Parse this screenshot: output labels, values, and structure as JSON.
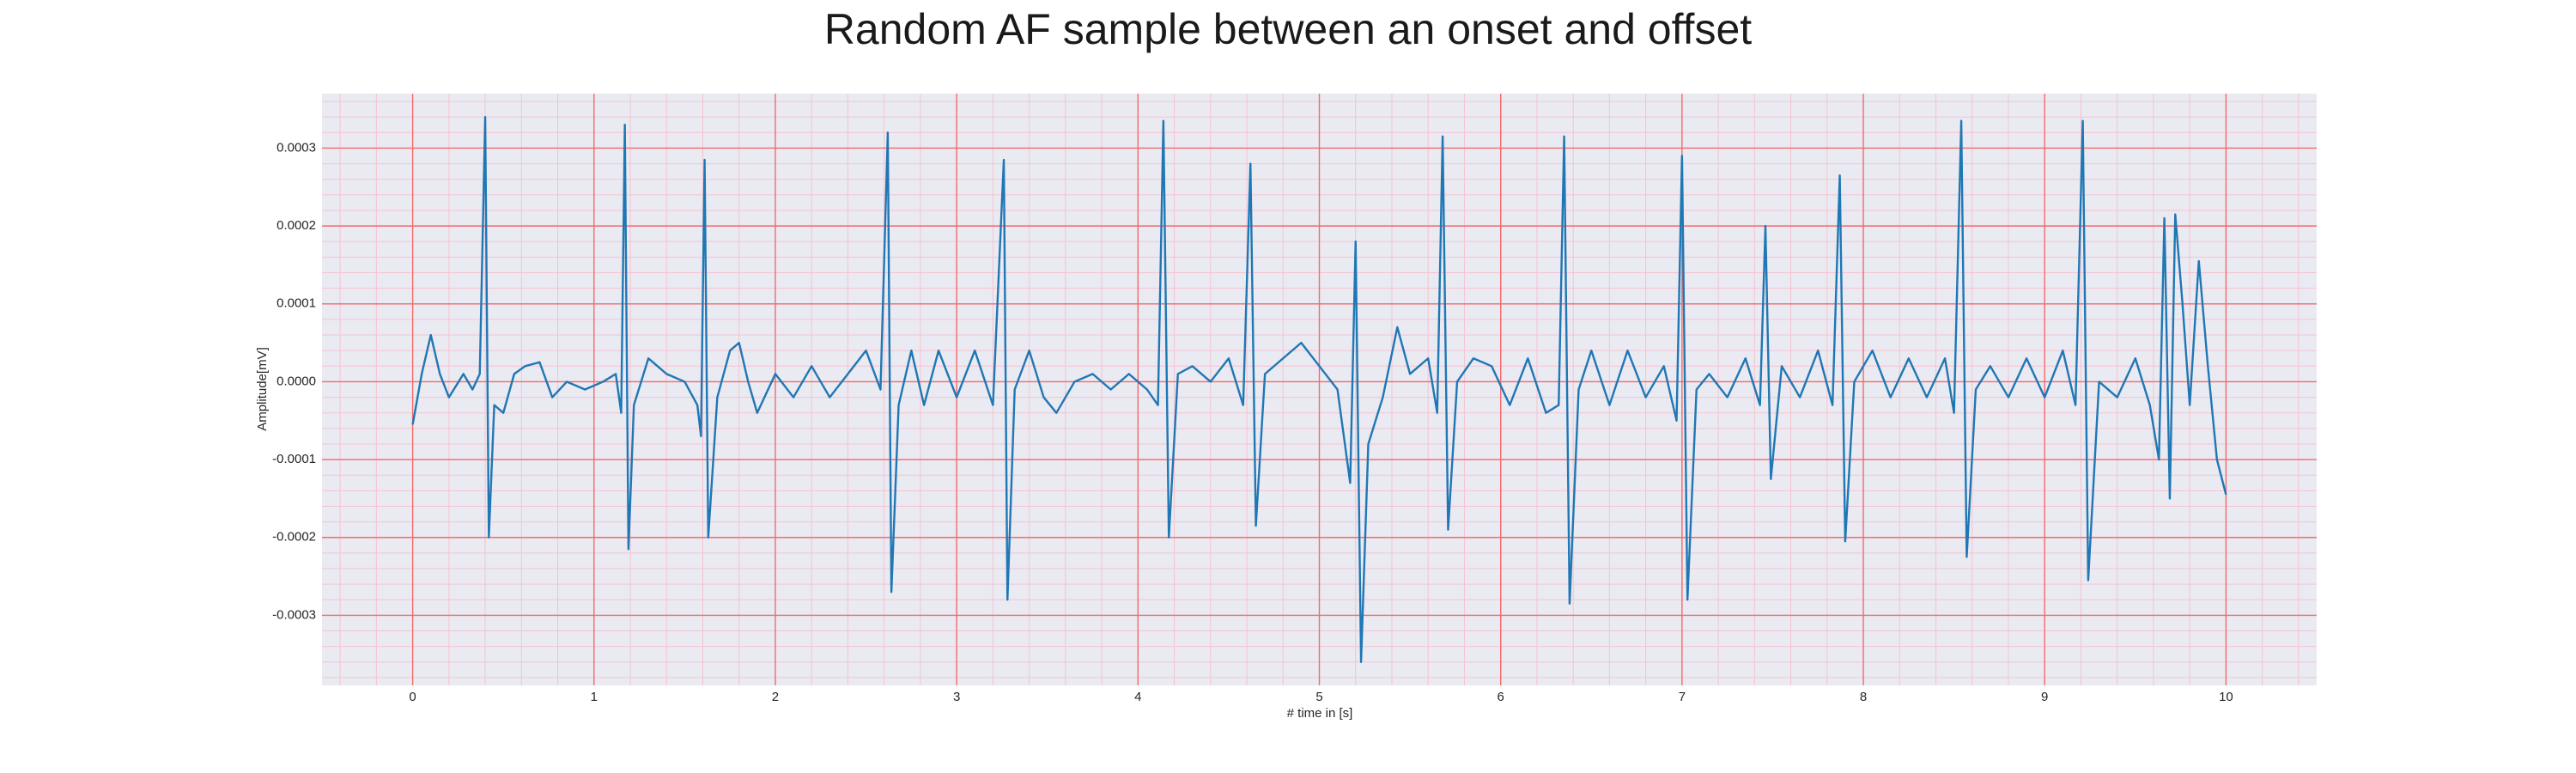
{
  "chart_data": {
    "type": "line",
    "title": "Random AF sample between an onset and offset",
    "xlabel": "# time in [s]",
    "ylabel": "Amplitude[mV]",
    "color": "#1f77b4",
    "plot_background": "#eaeaf2",
    "grid": true,
    "grid_color": "#f26b6b",
    "minor_grid": true,
    "minor_grid_color": "#f5c3cf",
    "xlim": [
      -0.5,
      10.5
    ],
    "xticks": [
      0,
      1,
      2,
      3,
      4,
      5,
      6,
      7,
      8,
      9,
      10
    ],
    "ylim": [
      -0.00039,
      0.00037
    ],
    "yticks": [
      {
        "value": -0.0003,
        "label": "-0.0003"
      },
      {
        "value": -0.0002,
        "label": "-0.0002"
      },
      {
        "value": -0.0001,
        "label": "-0.0001"
      },
      {
        "value": 0,
        "label": "0.0000"
      },
      {
        "value": 0.0001,
        "label": "0.0001"
      },
      {
        "value": 0.0002,
        "label": "0.0002"
      },
      {
        "value": 0.0003,
        "label": "0.0003"
      }
    ],
    "x": [
      0,
      0.05,
      0.1,
      0.15,
      0.2,
      0.28,
      0.33,
      0.37,
      0.4,
      0.42,
      0.45,
      0.5,
      0.56,
      0.62,
      0.7,
      0.77,
      0.85,
      0.95,
      1.05,
      1.12,
      1.15,
      1.17,
      1.19,
      1.22,
      1.3,
      1.4,
      1.5,
      1.57,
      1.59,
      1.61,
      1.63,
      1.68,
      1.75,
      1.8,
      1.85,
      1.9,
      2.0,
      2.1,
      2.2,
      2.3,
      2.4,
      2.5,
      2.58,
      2.62,
      2.64,
      2.68,
      2.75,
      2.82,
      2.9,
      3.0,
      3.1,
      3.2,
      3.26,
      3.28,
      3.32,
      3.4,
      3.48,
      3.55,
      3.65,
      3.75,
      3.85,
      3.95,
      4.05,
      4.11,
      4.14,
      4.17,
      4.22,
      4.3,
      4.4,
      4.5,
      4.58,
      4.62,
      4.65,
      4.7,
      4.8,
      4.9,
      5.0,
      5.1,
      5.17,
      5.2,
      5.23,
      5.27,
      5.35,
      5.43,
      5.5,
      5.6,
      5.65,
      5.68,
      5.71,
      5.76,
      5.85,
      5.95,
      6.05,
      6.15,
      6.25,
      6.32,
      6.35,
      6.38,
      6.43,
      6.5,
      6.6,
      6.7,
      6.8,
      6.9,
      6.97,
      7.0,
      7.03,
      7.08,
      7.15,
      7.25,
      7.35,
      7.43,
      7.46,
      7.49,
      7.55,
      7.65,
      7.75,
      7.83,
      7.87,
      7.9,
      7.95,
      8.05,
      8.15,
      8.25,
      8.35,
      8.45,
      8.5,
      8.54,
      8.57,
      8.62,
      8.7,
      8.8,
      8.9,
      9.0,
      9.1,
      9.17,
      9.21,
      9.24,
      9.3,
      9.4,
      9.5,
      9.58,
      9.63,
      9.66,
      9.69,
      9.72,
      9.76,
      9.8,
      9.85,
      9.9,
      9.95,
      10.0
    ],
    "values": [
      -5.5e-05,
      1e-05,
      6e-05,
      1e-05,
      -2e-05,
      1e-05,
      -1e-05,
      1e-05,
      0.00034,
      -0.0002,
      -3e-05,
      -4e-05,
      1e-05,
      2e-05,
      2.5e-05,
      -2e-05,
      0.0,
      -1e-05,
      0.0,
      1e-05,
      -4e-05,
      0.00033,
      -0.000215,
      -3e-05,
      3e-05,
      1e-05,
      0.0,
      -3e-05,
      -7e-05,
      0.000285,
      -0.0002,
      -2e-05,
      4e-05,
      5e-05,
      0.0,
      -4e-05,
      1e-05,
      -2e-05,
      2e-05,
      -2e-05,
      1e-05,
      4e-05,
      -1e-05,
      0.00032,
      -0.00027,
      -3e-05,
      4e-05,
      -3e-05,
      4e-05,
      -2e-05,
      4e-05,
      -3e-05,
      0.000285,
      -0.00028,
      -1e-05,
      4e-05,
      -2e-05,
      -4e-05,
      0.0,
      1e-05,
      -1e-05,
      1e-05,
      -1e-05,
      -3e-05,
      0.000335,
      -0.0002,
      1e-05,
      2e-05,
      0.0,
      3e-05,
      -3e-05,
      0.00028,
      -0.000185,
      1e-05,
      3e-05,
      5e-05,
      2e-05,
      -1e-05,
      -0.00013,
      0.00018,
      -0.00036,
      -8e-05,
      -2e-05,
      7e-05,
      1e-05,
      3e-05,
      -4e-05,
      0.000315,
      -0.00019,
      0.0,
      3e-05,
      2e-05,
      -3e-05,
      3e-05,
      -4e-05,
      -3e-05,
      0.000315,
      -0.000285,
      -1e-05,
      4e-05,
      -3e-05,
      4e-05,
      -2e-05,
      2e-05,
      -5e-05,
      0.00029,
      -0.00028,
      -1e-05,
      1e-05,
      -2e-05,
      3e-05,
      -3e-05,
      0.0002,
      -0.000125,
      2e-05,
      -2e-05,
      4e-05,
      -3e-05,
      0.000265,
      -0.000205,
      0.0,
      4e-05,
      -2e-05,
      3e-05,
      -2e-05,
      3e-05,
      -4e-05,
      0.000335,
      -0.000225,
      -1e-05,
      2e-05,
      -2e-05,
      3e-05,
      -2e-05,
      4e-05,
      -3e-05,
      0.000335,
      -0.000255,
      0.0,
      -2e-05,
      3e-05,
      -3e-05,
      -0.0001,
      0.00021,
      -0.00015,
      0.000215,
      0.0001,
      -3e-05,
      0.000155,
      2e-05,
      -0.0001,
      -0.000145
    ]
  }
}
